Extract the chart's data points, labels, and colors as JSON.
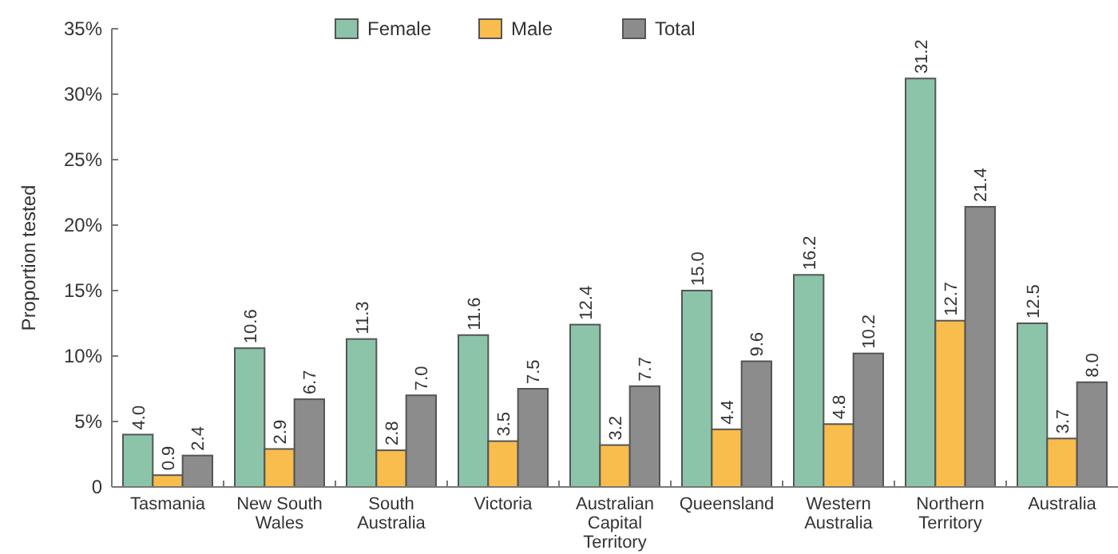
{
  "chart_data": {
    "type": "bar",
    "ylabel": "Proportion tested",
    "categories": [
      "Tasmania",
      "New South Wales",
      "South Australia",
      "Victoria",
      "Australian Capital Territory",
      "Queensland",
      "Western Australia",
      "Northern Territory",
      "Australia"
    ],
    "series": [
      {
        "name": "Female",
        "color": "#8cc4aa",
        "values": [
          4.0,
          10.6,
          11.3,
          11.6,
          12.4,
          15.0,
          16.2,
          31.2,
          12.5
        ],
        "value_labels": [
          "4.0",
          "10.6",
          "11.3",
          "11.6",
          "12.4",
          "15.0",
          "16.2",
          "31.2",
          "12.5"
        ]
      },
      {
        "name": "Male",
        "color": "#f9bd4d",
        "values": [
          0.9,
          2.9,
          2.8,
          3.5,
          3.2,
          4.4,
          4.8,
          12.7,
          3.7
        ],
        "value_labels": [
          "0.9",
          "2.9",
          "2.8",
          "3.5",
          "3.2",
          "4.4",
          "4.8",
          "12.7",
          "3.7"
        ]
      },
      {
        "name": "Total",
        "color": "#8c8c8c",
        "values": [
          2.4,
          6.7,
          7.0,
          7.5,
          7.7,
          9.6,
          10.2,
          21.4,
          8.0
        ],
        "value_labels": [
          "2.4",
          "6.7",
          "7.0",
          "7.5",
          "7.7",
          "9.6",
          "10.2",
          "21.4",
          "8.0"
        ]
      }
    ],
    "ylim": [
      0,
      35
    ],
    "yticks": [
      {
        "value": 0,
        "label": "0"
      },
      {
        "value": 5,
        "label": "5%"
      },
      {
        "value": 10,
        "label": "10%"
      },
      {
        "value": 15,
        "label": "15%"
      },
      {
        "value": 20,
        "label": "20%"
      },
      {
        "value": 25,
        "label": "25%"
      },
      {
        "value": 30,
        "label": "30%"
      },
      {
        "value": 35,
        "label": "35%"
      }
    ],
    "legend": "top"
  }
}
